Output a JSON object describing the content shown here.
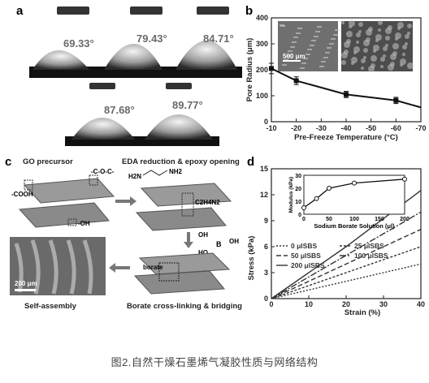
{
  "caption": "图2.自然干燥石墨烯气凝胶性质与网络结构",
  "panel_a": {
    "label": "a",
    "angles": [
      "69.33°",
      "79.43°",
      "84.71°",
      "87.68°",
      "89.77°"
    ]
  },
  "panel_c": {
    "label": "c",
    "steps": [
      "GO precursor",
      "EDA reduction & epoxy opening",
      "Self-assembly",
      "Borate cross-linking & bridging"
    ],
    "groups": [
      "-C-O-C-",
      "-COOH",
      "-OH",
      "H2N",
      "NH2",
      "C2H4N2",
      "OH",
      "HO",
      "B",
      "OH",
      "borate"
    ],
    "scale_bar": "200 μm"
  },
  "chart_data": [
    {
      "panel": "b",
      "type": "line",
      "x": [
        -10,
        -20,
        -40,
        -60,
        -70
      ],
      "y": [
        205,
        158,
        105,
        82,
        55
      ],
      "y_err": [
        20,
        15,
        12,
        12,
        0
      ],
      "xlabel": "Pre-Freeze Temperature (°C)",
      "ylabel": "Pore Radius (μm)",
      "xlim": [
        -10,
        -70
      ],
      "ylim": [
        0,
        400
      ],
      "xticks": [
        "-10",
        "-20",
        "-30",
        "-40",
        "-50",
        "-60",
        "-70"
      ],
      "yticks": [
        "0",
        "100",
        "200",
        "300",
        "400"
      ],
      "inset_scale": "500 μm"
    },
    {
      "panel": "d",
      "type": "line",
      "xlabel": "Strain (%)",
      "ylabel": "Stress (kPa)",
      "xlim": [
        0,
        40
      ],
      "ylim": [
        0,
        15
      ],
      "xticks": [
        "0",
        "10",
        "20",
        "30",
        "40"
      ],
      "yticks": [
        "0",
        "3",
        "6",
        "9",
        "12",
        "15"
      ],
      "legend": [
        "0 μlSBS",
        "25 μlSBS",
        "50 μlSBS",
        "100 μlSBS",
        "200 μlSBS"
      ],
      "series": [
        {
          "name": "0 μlSBS",
          "values": [
            [
              0,
              0
            ],
            [
              20,
              2
            ],
            [
              40,
              4
            ]
          ]
        },
        {
          "name": "25 μlSBS",
          "values": [
            [
              0,
              0
            ],
            [
              20,
              3
            ],
            [
              40,
              6
            ]
          ]
        },
        {
          "name": "50 μlSBS",
          "values": [
            [
              0,
              0
            ],
            [
              20,
              4
            ],
            [
              40,
              8
            ]
          ]
        },
        {
          "name": "100 μlSBS",
          "values": [
            [
              0,
              0
            ],
            [
              20,
              5
            ],
            [
              40,
              10
            ]
          ]
        },
        {
          "name": "200 μlSBS",
          "values": [
            [
              0,
              0
            ],
            [
              20,
              6
            ],
            [
              40,
              12.5
            ]
          ]
        }
      ],
      "inset": {
        "type": "line",
        "xlabel": "Sodium Borate Solution (μl)",
        "ylabel": "Modulus (kPa)",
        "x": [
          0,
          25,
          50,
          100,
          200
        ],
        "y": [
          5,
          12,
          20,
          24,
          27
        ],
        "xlim": [
          0,
          200
        ],
        "ylim": [
          0,
          30
        ],
        "xticks": [
          "0",
          "50",
          "100",
          "150",
          "200"
        ],
        "yticks": [
          "0",
          "10",
          "20",
          "30"
        ]
      }
    }
  ]
}
